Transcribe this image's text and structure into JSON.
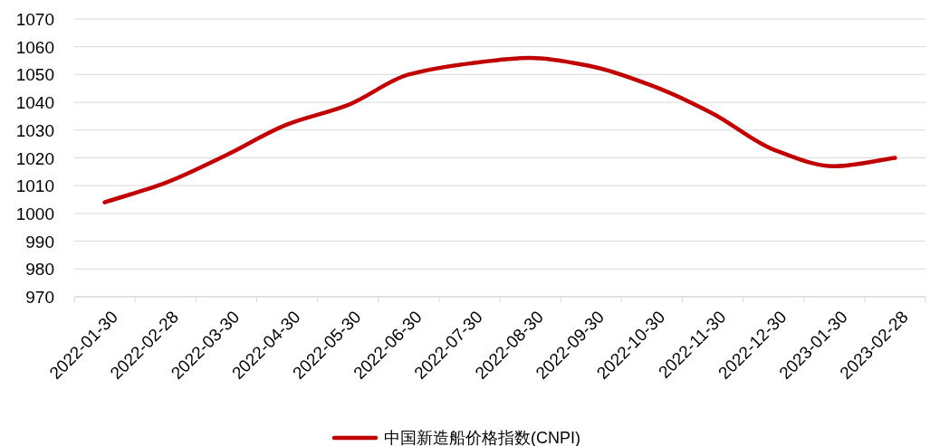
{
  "chart_data": {
    "type": "line",
    "categories": [
      "2022-01-30",
      "2022-02-28",
      "2022-03-30",
      "2022-04-30",
      "2022-05-30",
      "2022-06-30",
      "2022-07-30",
      "2022-08-30",
      "2022-09-30",
      "2022-10-30",
      "2022-11-30",
      "2022-12-30",
      "2023-01-30",
      "2023-02-28"
    ],
    "series": [
      {
        "name": "中国新造船价格指数(CNPI)",
        "color": "#c00000",
        "values": [
          1004,
          1011,
          1021,
          1032,
          1039,
          1050,
          1054,
          1056,
          1053,
          1046,
          1036,
          1023,
          1017,
          1020
        ]
      }
    ],
    "ylim": [
      970,
      1070
    ],
    "yticks": [
      970,
      980,
      990,
      1000,
      1010,
      1020,
      1030,
      1040,
      1050,
      1060,
      1070
    ],
    "grid": "y",
    "legend": "bottom",
    "line_style": "solid"
  }
}
